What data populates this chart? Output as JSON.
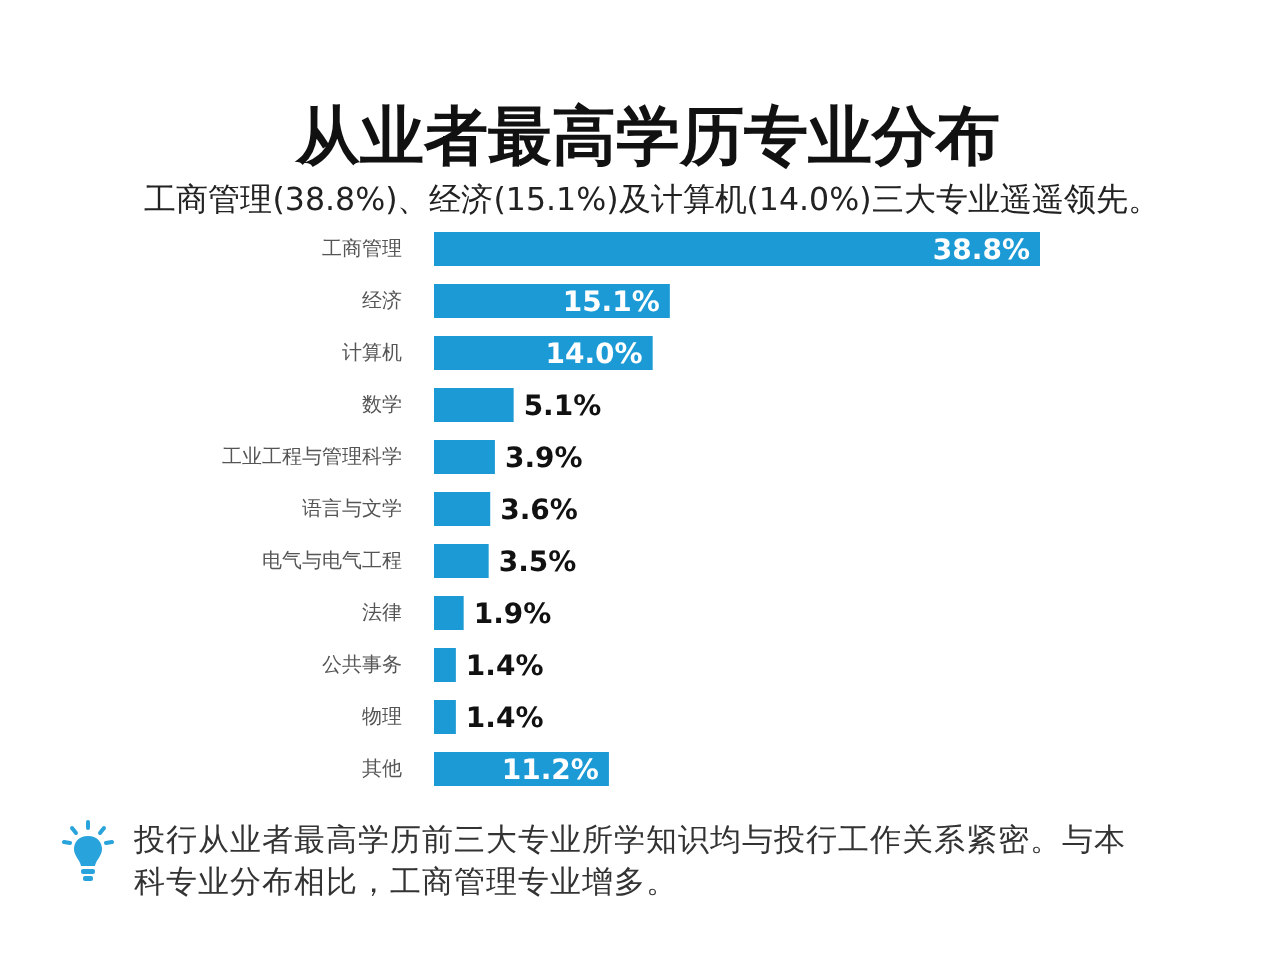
{
  "chart_data": {
    "type": "bar",
    "orientation": "horizontal",
    "title": "从业者最高学历专业分布",
    "subtitle": "工商管理(38.8%)、经济(15.1%)及计算机(14.0%)三大专业遥遥领先。",
    "categories": [
      "工商管理",
      "经济",
      "计算机",
      "数学",
      "工业工程与管理科学",
      "语言与文学",
      "电气与电气工程",
      "法律",
      "公共事务",
      "物理",
      "其他"
    ],
    "values": [
      38.8,
      15.1,
      14.0,
      5.1,
      3.9,
      3.6,
      3.5,
      1.9,
      1.4,
      1.4,
      11.2
    ],
    "value_labels": [
      "38.8%",
      "15.1%",
      "14.0%",
      "5.1%",
      "3.9%",
      "3.6%",
      "3.5%",
      "1.9%",
      "1.4%",
      "1.4%",
      "11.2%"
    ],
    "color": "#1b9ad6",
    "tick_labels": "y",
    "annotations": [
      "投行从业者最高学历前三大专业所学知识均与投行工作关系紧密。与本科专业分布相比，工商管理专业增多。"
    ]
  }
}
